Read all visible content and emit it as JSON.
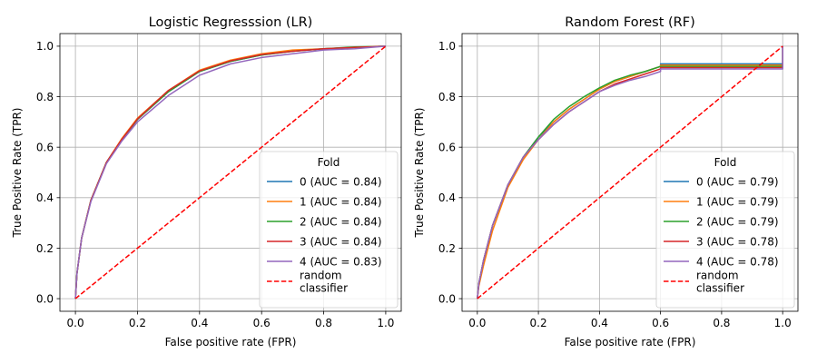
{
  "chart_data": [
    {
      "type": "line",
      "title": "Logistic Regresssion (LR)",
      "xlabel": "False positive rate (FPR)",
      "ylabel": "True Positive Rate (TPR)",
      "xlim": [
        -0.05,
        1.05
      ],
      "ylim": [
        -0.05,
        1.05
      ],
      "xticks": [
        0.0,
        0.2,
        0.4,
        0.6,
        0.8,
        1.0
      ],
      "yticks": [
        0.0,
        0.2,
        0.4,
        0.6,
        0.8,
        1.0
      ],
      "xtick_labels": [
        "0.0",
        "0.2",
        "0.4",
        "0.6",
        "0.8",
        "1.0"
      ],
      "ytick_labels": [
        "0.0",
        "0.2",
        "0.4",
        "0.6",
        "0.8",
        "1.0"
      ],
      "grid": true,
      "legend": {
        "title": "Fold",
        "placement": "lower-right"
      },
      "series": [
        {
          "name": "0 (AUC = 0.84)",
          "color": "#1f77b4",
          "x": [
            0,
            0.005,
            0.02,
            0.05,
            0.1,
            0.15,
            0.2,
            0.3,
            0.4,
            0.5,
            0.6,
            0.7,
            0.8,
            0.9,
            1.0
          ],
          "y": [
            0,
            0.1,
            0.24,
            0.39,
            0.54,
            0.63,
            0.71,
            0.82,
            0.9,
            0.94,
            0.965,
            0.98,
            0.99,
            0.995,
            1.0
          ]
        },
        {
          "name": "1 (AUC = 0.84)",
          "color": "#ff7f0e",
          "x": [
            0,
            0.005,
            0.02,
            0.05,
            0.1,
            0.15,
            0.2,
            0.3,
            0.4,
            0.5,
            0.6,
            0.7,
            0.8,
            0.9,
            1.0
          ],
          "y": [
            0,
            0.1,
            0.24,
            0.39,
            0.54,
            0.635,
            0.715,
            0.825,
            0.905,
            0.945,
            0.97,
            0.985,
            0.99,
            0.995,
            1.0
          ]
        },
        {
          "name": "2 (AUC = 0.84)",
          "color": "#2ca02c",
          "x": [
            0,
            0.005,
            0.02,
            0.05,
            0.1,
            0.15,
            0.2,
            0.3,
            0.4,
            0.5,
            0.6,
            0.7,
            0.8,
            0.9,
            1.0
          ],
          "y": [
            0,
            0.1,
            0.24,
            0.39,
            0.54,
            0.63,
            0.71,
            0.82,
            0.9,
            0.94,
            0.965,
            0.98,
            0.99,
            0.997,
            1.0
          ]
        },
        {
          "name": "3 (AUC = 0.84)",
          "color": "#d62728",
          "x": [
            0,
            0.005,
            0.02,
            0.05,
            0.1,
            0.15,
            0.2,
            0.3,
            0.4,
            0.5,
            0.6,
            0.7,
            0.8,
            0.9,
            1.0
          ],
          "y": [
            0,
            0.1,
            0.24,
            0.39,
            0.54,
            0.632,
            0.712,
            0.825,
            0.902,
            0.942,
            0.967,
            0.98,
            0.99,
            0.995,
            1.0
          ]
        },
        {
          "name": "4 (AUC = 0.83)",
          "color": "#9467bd",
          "x": [
            0,
            0.005,
            0.02,
            0.05,
            0.1,
            0.15,
            0.2,
            0.3,
            0.4,
            0.5,
            0.6,
            0.7,
            0.8,
            0.9,
            1.0
          ],
          "y": [
            0,
            0.1,
            0.24,
            0.385,
            0.535,
            0.625,
            0.7,
            0.805,
            0.885,
            0.93,
            0.955,
            0.97,
            0.985,
            0.99,
            1.0
          ]
        },
        {
          "name": "random\nclassifier",
          "color": "#ff0000",
          "dashed": true,
          "x": [
            0,
            1
          ],
          "y": [
            0,
            1
          ]
        }
      ]
    },
    {
      "type": "line",
      "title": "Random Forest (RF)",
      "xlabel": "False positive rate (FPR)",
      "ylabel": "True Positive Rate (TPR)",
      "xlim": [
        -0.05,
        1.05
      ],
      "ylim": [
        -0.05,
        1.05
      ],
      "xticks": [
        0.0,
        0.2,
        0.4,
        0.6,
        0.8,
        1.0
      ],
      "yticks": [
        0.0,
        0.2,
        0.4,
        0.6,
        0.8,
        1.0
      ],
      "xtick_labels": [
        "0.0",
        "0.2",
        "0.4",
        "0.6",
        "0.8",
        "1.0"
      ],
      "ytick_labels": [
        "0.0",
        "0.2",
        "0.4",
        "0.6",
        "0.8",
        "1.0"
      ],
      "grid": true,
      "legend": {
        "title": "Fold",
        "placement": "lower-right"
      },
      "series": [
        {
          "name": "0 (AUC = 0.79)",
          "color": "#1f77b4",
          "x": [
            0,
            0.005,
            0.02,
            0.05,
            0.1,
            0.15,
            0.2,
            0.25,
            0.3,
            0.35,
            0.4,
            0.45,
            0.5,
            0.55,
            0.6,
            0.6,
            1.0,
            1.0
          ],
          "y": [
            0,
            0.06,
            0.15,
            0.29,
            0.45,
            0.56,
            0.64,
            0.7,
            0.75,
            0.79,
            0.83,
            0.86,
            0.88,
            0.9,
            0.92,
            0.93,
            0.93,
            1.0
          ]
        },
        {
          "name": "1 (AUC = 0.79)",
          "color": "#ff7f0e",
          "x": [
            0,
            0.005,
            0.02,
            0.05,
            0.1,
            0.15,
            0.2,
            0.25,
            0.3,
            0.35,
            0.4,
            0.45,
            0.5,
            0.55,
            0.6,
            0.6,
            1.0,
            1.0
          ],
          "y": [
            0,
            0.05,
            0.13,
            0.27,
            0.44,
            0.55,
            0.63,
            0.7,
            0.75,
            0.79,
            0.83,
            0.86,
            0.88,
            0.9,
            0.92,
            0.925,
            0.925,
            1.0
          ]
        },
        {
          "name": "2 (AUC = 0.79)",
          "color": "#2ca02c",
          "x": [
            0,
            0.005,
            0.02,
            0.05,
            0.1,
            0.15,
            0.2,
            0.25,
            0.3,
            0.35,
            0.4,
            0.45,
            0.5,
            0.55,
            0.6,
            0.6,
            1.0,
            1.0
          ],
          "y": [
            0,
            0.06,
            0.15,
            0.29,
            0.45,
            0.56,
            0.64,
            0.71,
            0.76,
            0.8,
            0.835,
            0.865,
            0.885,
            0.9,
            0.92,
            0.92,
            0.92,
            1.0
          ]
        },
        {
          "name": "3 (AUC = 0.78)",
          "color": "#d62728",
          "x": [
            0,
            0.005,
            0.02,
            0.05,
            0.1,
            0.15,
            0.2,
            0.25,
            0.3,
            0.35,
            0.4,
            0.45,
            0.5,
            0.55,
            0.6,
            0.6,
            1.0,
            1.0
          ],
          "y": [
            0,
            0.06,
            0.15,
            0.29,
            0.45,
            0.56,
            0.63,
            0.69,
            0.74,
            0.78,
            0.82,
            0.85,
            0.87,
            0.89,
            0.91,
            0.915,
            0.915,
            1.0
          ]
        },
        {
          "name": "4 (AUC = 0.78)",
          "color": "#9467bd",
          "x": [
            0,
            0.005,
            0.02,
            0.05,
            0.1,
            0.15,
            0.2,
            0.25,
            0.3,
            0.35,
            0.4,
            0.45,
            0.5,
            0.55,
            0.6,
            0.6,
            1.0,
            1.0
          ],
          "y": [
            0,
            0.06,
            0.15,
            0.29,
            0.45,
            0.56,
            0.63,
            0.69,
            0.74,
            0.78,
            0.82,
            0.845,
            0.865,
            0.88,
            0.9,
            0.91,
            0.91,
            1.0
          ]
        },
        {
          "name": "random\nclassifier",
          "color": "#ff0000",
          "dashed": true,
          "x": [
            0,
            1
          ],
          "y": [
            0,
            1
          ]
        }
      ]
    }
  ]
}
